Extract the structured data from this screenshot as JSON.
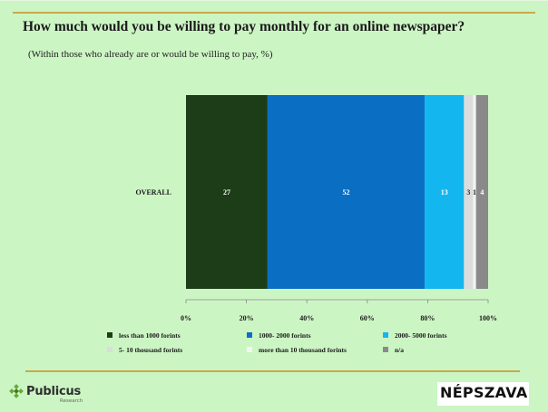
{
  "title": "How much would you be willing to pay monthly for an online newspaper?",
  "subtitle": "(Within those who already are or would be willing to pay, %)",
  "logos": {
    "left_name": "Publicus",
    "left_sub": "Research",
    "right_name": "NÉPSZAVA"
  },
  "chart_data": {
    "type": "bar",
    "orientation": "horizontal",
    "stacked": true,
    "categories": [
      "OVERALL"
    ],
    "series": [
      {
        "name": "less than 1000 forints",
        "values": [
          27
        ],
        "color": "#1d3d18",
        "label": "27"
      },
      {
        "name": "1000- 2000 forints",
        "values": [
          52
        ],
        "color": "#0a6fc2",
        "label": "52"
      },
      {
        "name": "2000- 5000 forints",
        "values": [
          13
        ],
        "color": "#13b6ef",
        "label": "13"
      },
      {
        "name": "5- 10 thousand forints",
        "values": [
          3
        ],
        "color": "#dcdcdc",
        "label": "3"
      },
      {
        "name": "more than 10 thousand forints",
        "values": [
          1
        ],
        "color": "#f4f4f4",
        "label": "1"
      },
      {
        "name": "n/a",
        "values": [
          4
        ],
        "color": "#8a8a8a",
        "label": "4"
      }
    ],
    "xlim": [
      0,
      100
    ],
    "x_ticks": [
      "0%",
      "20%",
      "40%",
      "60%",
      "80%",
      "100%"
    ],
    "grid": false,
    "legend_position": "bottom"
  },
  "colors": {
    "background": "#ccf5c4",
    "rule": "#c9a84a"
  }
}
